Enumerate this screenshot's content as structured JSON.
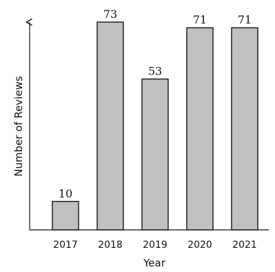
{
  "chart_data": {
    "type": "bar",
    "categories": [
      "2017",
      "2018",
      "2019",
      "2020",
      "2021"
    ],
    "values": [
      10,
      73,
      53,
      71,
      71
    ],
    "data_labels": [
      "10",
      "73",
      "53",
      "71",
      "71"
    ],
    "xlabel": "Year",
    "ylabel": "Number of Reviews",
    "ylim": [
      0,
      80
    ],
    "y_ticks_shown": false,
    "grid": false,
    "legend": "none",
    "colors": {
      "bar_fill": "#c0c0c0",
      "bar_stroke": "#111111"
    }
  }
}
